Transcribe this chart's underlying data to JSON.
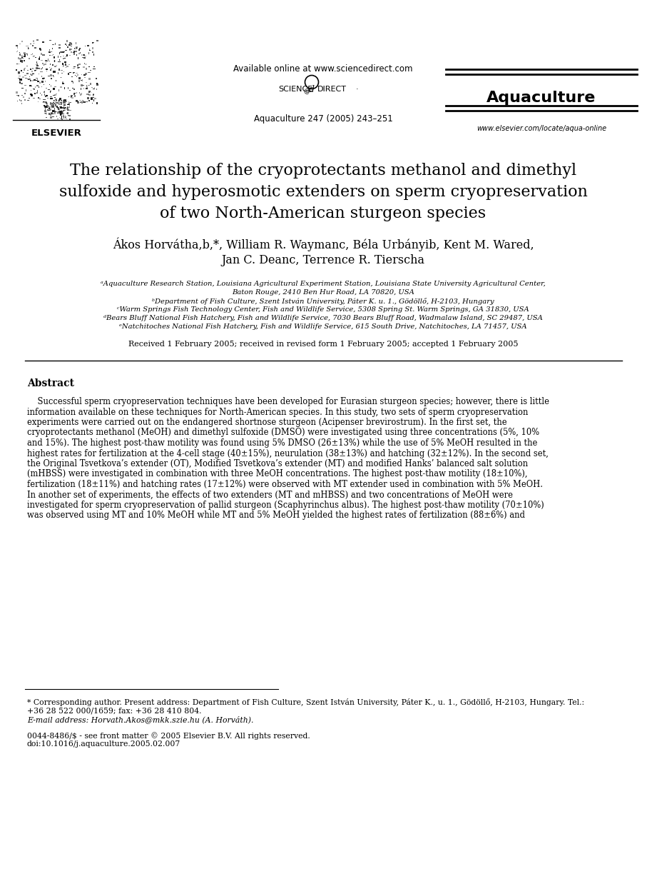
{
  "bg_color": "#ffffff",
  "header_available_online": "Available online at www.sciencedirect.com",
  "header_journal": "Aquaculture",
  "header_journal_info": "Aquaculture 247 (2005) 243–251",
  "header_website": "www.elsevier.com/locate/aqua-online",
  "elsevier_text": "ELSEVIER",
  "title_line1": "The relationship of the cryoprotectants methanol and dimethyl",
  "title_line2": "sulfoxide and hyperosmotic extenders on sperm cryopreservation",
  "title_line3": "of two North-American sturgeon species",
  "authors_line1": "Ákos Horvátha,b,*, William R. Waymanc, Béla Urbányib, Kent M. Wared,",
  "authors_line2": "Jan C. Deanc, Terrence R. Tierscha",
  "affil_a": "ᵃAquaculture Research Station, Louisiana Agricultural Experiment Station, Louisiana State University Agricultural Center,",
  "affil_a2": "Baton Rouge, 2410 Ben Hur Road, LA 70820, USA",
  "affil_b": "ᵇDepartment of Fish Culture, Szent István University, Páter K. u. 1., Gödöllő, H-2103, Hungary",
  "affil_c": "ᶜWarm Springs Fish Technology Center, Fish and Wildlife Service, 5308 Spring St. Warm Springs, GA 31830, USA",
  "affil_d": "ᵈBears Bluff National Fish Hatchery, Fish and Wildlife Service, 7030 Bears Bluff Road, Wadmalaw Island, SC 29487, USA",
  "affil_e": "ᵉNatchitoches National Fish Hatchery, Fish and Wildlife Service, 615 South Drive, Natchitoches, LA 71457, USA",
  "received": "Received 1 February 2005; received in revised form 1 February 2005; accepted 1 February 2005",
  "abstract_title": "Abstract",
  "abstract_lines": [
    "    Successful sperm cryopreservation techniques have been developed for Eurasian sturgeon species; however, there is little",
    "information available on these techniques for North-American species. In this study, two sets of sperm cryopreservation",
    "experiments were carried out on the endangered shortnose sturgeon (Acipenser brevirostrum). In the first set, the",
    "cryoprotectants methanol (MeOH) and dimethyl sulfoxide (DMSO) were investigated using three concentrations (5%, 10%",
    "and 15%). The highest post-thaw motility was found using 5% DMSO (26±13%) while the use of 5% MeOH resulted in the",
    "highest rates for fertilization at the 4-cell stage (40±15%), neurulation (38±13%) and hatching (32±12%). In the second set,",
    "the Original Tsvetkova’s extender (OT), Modified Tsvetkova’s extender (MT) and modified Hanks’ balanced salt solution",
    "(mHBSS) were investigated in combination with three MeOH concentrations. The highest post-thaw motility (18±10%),",
    "fertilization (18±11%) and hatching rates (17±12%) were observed with MT extender used in combination with 5% MeOH.",
    "In another set of experiments, the effects of two extenders (MT and mHBSS) and two concentrations of MeOH were",
    "investigated for sperm cryopreservation of pallid sturgeon (Scaphyrinchus albus). The highest post-thaw motility (70±10%)",
    "was observed using MT and 10% MeOH while MT and 5% MeOH yielded the highest rates of fertilization (88±6%) and"
  ],
  "footer_line1": "* Corresponding author. Present address: Department of Fish Culture, Szent István University, Páter K., u. 1., Gödöllő, H-2103, Hungary. Tel.:",
  "footer_line2": "+36 28 522 000/1659; fax: +36 28 410 804.",
  "footer_line3": "E-mail address: Horvath.Akos@mkk.szie.hu (A. Horváth).",
  "footer_line4": "0044-8486/$ - see front matter © 2005 Elsevier B.V. All rights reserved.",
  "footer_line5": "doi:10.1016/j.aquaculture.2005.02.007"
}
